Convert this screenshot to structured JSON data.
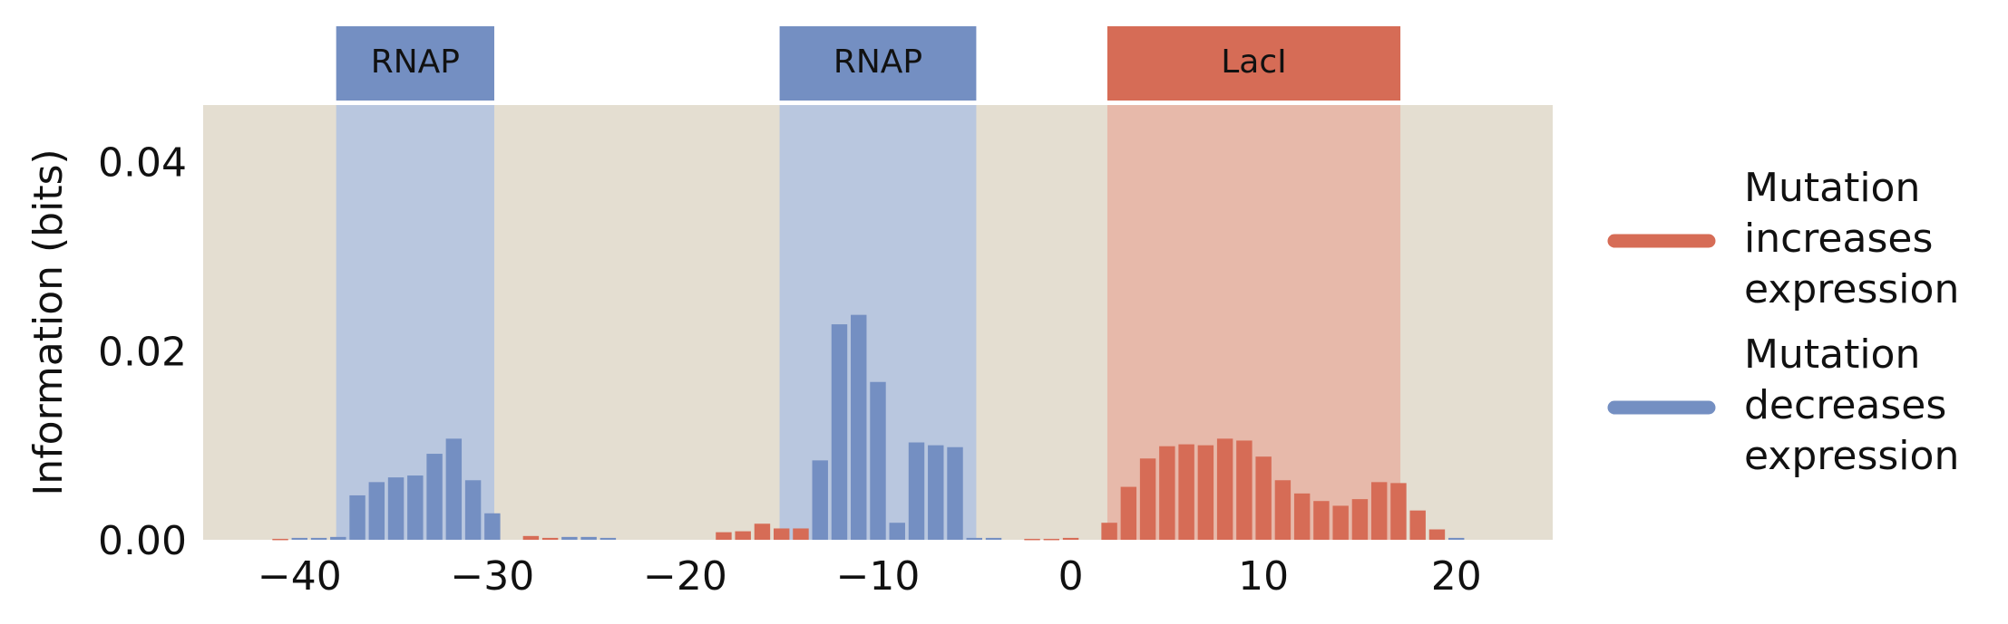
{
  "chart_data": {
    "type": "bar",
    "x_axis": {
      "range": [
        -45,
        25
      ],
      "ticks": [
        -40,
        -30,
        -20,
        -10,
        0,
        10,
        20
      ],
      "tick_labels": [
        "−40",
        "−30",
        "−20",
        "−10",
        "0",
        "10",
        "20"
      ]
    },
    "y_axis": {
      "label": "Information (bits)",
      "range": [
        0,
        0.046
      ],
      "ticks": [
        0.0,
        0.02,
        0.04
      ],
      "tick_labels": [
        "0.00",
        "0.02",
        "0.04"
      ]
    },
    "grid": false,
    "legend_position": "right",
    "colors": {
      "increase": "#d66c56",
      "decrease": "#748fc2",
      "plot_background": "#e4ded1",
      "region_blue": "#b9c7df",
      "region_red": "#e7b9aa"
    },
    "regions": [
      {
        "label": "RNAP",
        "start": -38.1,
        "end": -29.9,
        "kind": "decrease"
      },
      {
        "label": "RNAP",
        "start": -15.1,
        "end": -4.9,
        "kind": "decrease"
      },
      {
        "label": "LacI",
        "start": 1.9,
        "end": 17.1,
        "kind": "increase"
      }
    ],
    "series": [
      {
        "name": "Mutation increases expression",
        "kind": "increase",
        "x": [
          -41,
          -28,
          -27,
          -18,
          -17,
          -16,
          -15,
          -14,
          -2,
          -1,
          0,
          2,
          3,
          4,
          5,
          6,
          7,
          8,
          9,
          10,
          11,
          12,
          13,
          14,
          15,
          16,
          17,
          18,
          19
        ],
        "values": [
          0.0001,
          0.0004,
          0.0002,
          0.0008,
          0.0009,
          0.0017,
          0.0012,
          0.0012,
          0.0001,
          0.0001,
          0.0002,
          0.0018,
          0.0056,
          0.0086,
          0.0099,
          0.0101,
          0.01,
          0.0107,
          0.0105,
          0.0088,
          0.0063,
          0.0049,
          0.0041,
          0.0036,
          0.0043,
          0.0061,
          0.006,
          0.0031,
          0.0011
        ]
      },
      {
        "name": "Mutation decreases expression",
        "kind": "decrease",
        "x": [
          -40,
          -39,
          -38,
          -37,
          -36,
          -35,
          -34,
          -33,
          -32,
          -31,
          -30,
          -26,
          -25,
          -24,
          -13,
          -12,
          -11,
          -10,
          -9,
          -8,
          -7,
          -6,
          -5,
          -4,
          20
        ],
        "values": [
          0.0002,
          0.0002,
          0.0003,
          0.0047,
          0.0061,
          0.0066,
          0.0068,
          0.0091,
          0.0107,
          0.0063,
          0.0028,
          0.0003,
          0.0003,
          0.0002,
          0.0084,
          0.0228,
          0.0238,
          0.0167,
          0.0018,
          0.0103,
          0.01,
          0.0098,
          0.0002,
          0.0002,
          0.0002
        ]
      }
    ],
    "legend": [
      {
        "kind": "increase",
        "lines": [
          "Mutation",
          "increases",
          "expression"
        ]
      },
      {
        "kind": "decrease",
        "lines": [
          "Mutation",
          "decreases",
          "expression"
        ]
      }
    ]
  }
}
